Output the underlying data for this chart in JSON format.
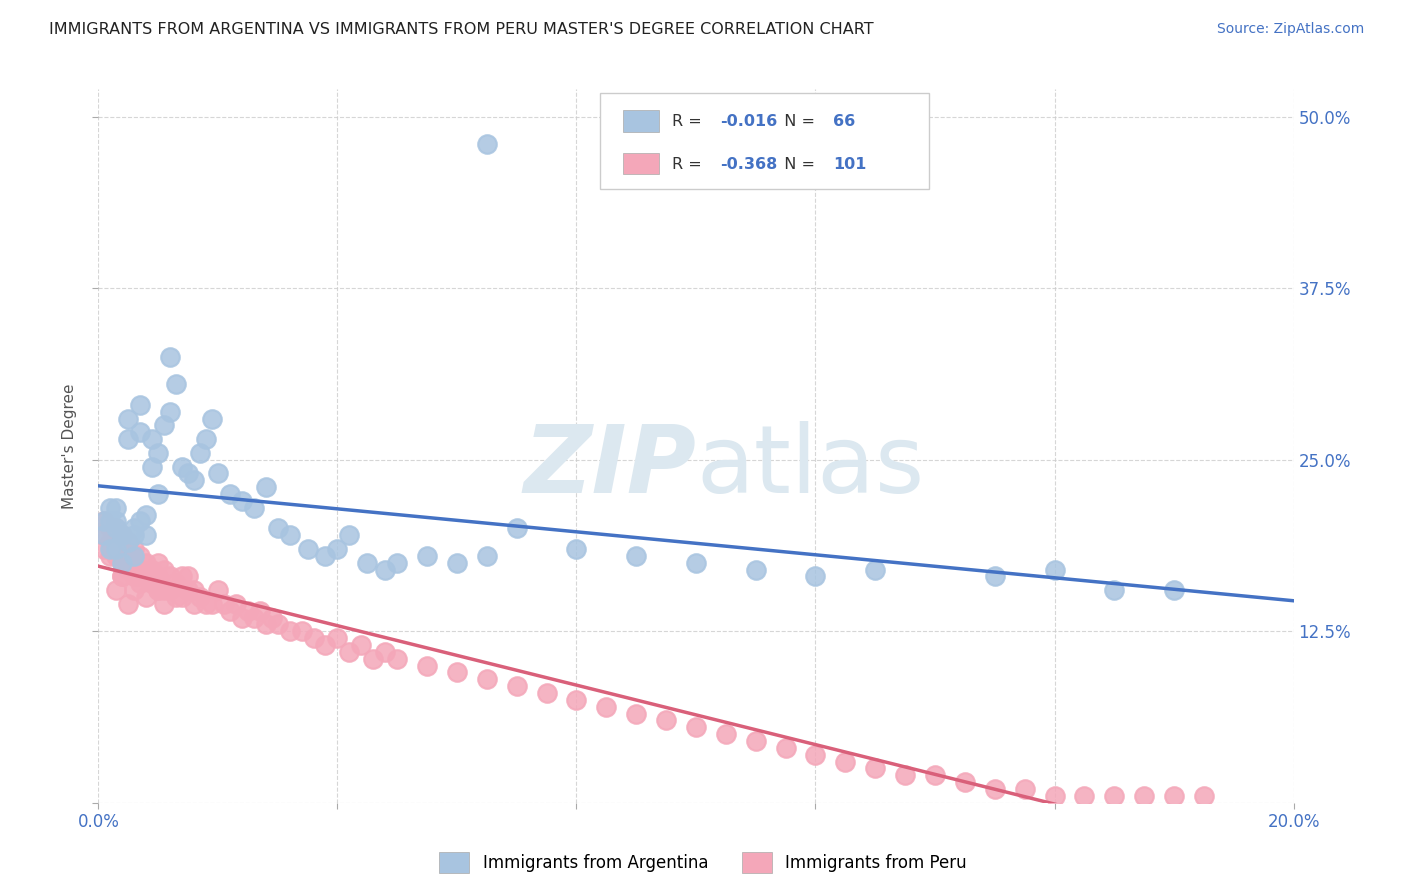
{
  "title": "IMMIGRANTS FROM ARGENTINA VS IMMIGRANTS FROM PERU MASTER'S DEGREE CORRELATION CHART",
  "source": "Source: ZipAtlas.com",
  "ylabel": "Master's Degree",
  "legend_label1": "Immigrants from Argentina",
  "legend_label2": "Immigrants from Peru",
  "R1": -0.016,
  "N1": 66,
  "R2": -0.368,
  "N2": 101,
  "color1": "#a8c4e0",
  "color2": "#f4a7b9",
  "line_color1": "#4472c4",
  "line_color2": "#d9607a",
  "watermark_color": "#dce8f0",
  "background_color": "#ffffff",
  "title_color": "#222222",
  "source_color": "#4472c4",
  "axis_color": "#4472c4",
  "grid_color": "#cccccc",
  "xlim": [
    0.0,
    0.2
  ],
  "ylim": [
    0.0,
    0.52
  ],
  "yticks": [
    0.0,
    0.125,
    0.25,
    0.375,
    0.5
  ],
  "ytick_labels": [
    "",
    "12.5%",
    "25.0%",
    "37.5%",
    "50.0%"
  ],
  "argentina_x": [
    0.001,
    0.001,
    0.002,
    0.002,
    0.003,
    0.003,
    0.003,
    0.004,
    0.004,
    0.005,
    0.005,
    0.006,
    0.006,
    0.007,
    0.007,
    0.008,
    0.008,
    0.009,
    0.009,
    0.01,
    0.01,
    0.011,
    0.012,
    0.012,
    0.013,
    0.014,
    0.015,
    0.016,
    0.017,
    0.018,
    0.019,
    0.02,
    0.022,
    0.024,
    0.026,
    0.028,
    0.03,
    0.032,
    0.035,
    0.038,
    0.04,
    0.042,
    0.045,
    0.048,
    0.05,
    0.055,
    0.06,
    0.065,
    0.07,
    0.08,
    0.09,
    0.1,
    0.11,
    0.12,
    0.13,
    0.15,
    0.16,
    0.17,
    0.18,
    0.002,
    0.003,
    0.004,
    0.005,
    0.006,
    0.007,
    0.065
  ],
  "argentina_y": [
    0.205,
    0.195,
    0.215,
    0.185,
    0.205,
    0.185,
    0.215,
    0.195,
    0.175,
    0.28,
    0.265,
    0.195,
    0.18,
    0.29,
    0.27,
    0.195,
    0.21,
    0.245,
    0.265,
    0.255,
    0.225,
    0.275,
    0.285,
    0.325,
    0.305,
    0.245,
    0.24,
    0.235,
    0.255,
    0.265,
    0.28,
    0.24,
    0.225,
    0.22,
    0.215,
    0.23,
    0.2,
    0.195,
    0.185,
    0.18,
    0.185,
    0.195,
    0.175,
    0.17,
    0.175,
    0.18,
    0.175,
    0.18,
    0.2,
    0.185,
    0.18,
    0.175,
    0.17,
    0.165,
    0.17,
    0.165,
    0.17,
    0.155,
    0.155,
    0.205,
    0.2,
    0.195,
    0.19,
    0.2,
    0.205,
    0.48
  ],
  "peru_x": [
    0.001,
    0.001,
    0.001,
    0.002,
    0.002,
    0.002,
    0.003,
    0.003,
    0.003,
    0.004,
    0.004,
    0.004,
    0.004,
    0.005,
    0.005,
    0.005,
    0.006,
    0.006,
    0.006,
    0.007,
    0.007,
    0.007,
    0.008,
    0.008,
    0.009,
    0.009,
    0.01,
    0.01,
    0.01,
    0.011,
    0.011,
    0.012,
    0.012,
    0.013,
    0.013,
    0.014,
    0.014,
    0.015,
    0.015,
    0.016,
    0.016,
    0.017,
    0.018,
    0.019,
    0.02,
    0.021,
    0.022,
    0.023,
    0.024,
    0.025,
    0.026,
    0.027,
    0.028,
    0.029,
    0.03,
    0.032,
    0.034,
    0.036,
    0.038,
    0.04,
    0.042,
    0.044,
    0.046,
    0.048,
    0.05,
    0.055,
    0.06,
    0.065,
    0.07,
    0.075,
    0.08,
    0.085,
    0.09,
    0.095,
    0.1,
    0.105,
    0.11,
    0.115,
    0.12,
    0.125,
    0.13,
    0.135,
    0.14,
    0.145,
    0.15,
    0.155,
    0.16,
    0.165,
    0.17,
    0.175,
    0.18,
    0.185,
    0.003,
    0.004,
    0.005,
    0.006,
    0.007,
    0.008,
    0.009,
    0.01,
    0.011
  ],
  "peru_y": [
    0.205,
    0.195,
    0.185,
    0.2,
    0.19,
    0.18,
    0.2,
    0.19,
    0.18,
    0.195,
    0.185,
    0.175,
    0.165,
    0.19,
    0.18,
    0.17,
    0.185,
    0.175,
    0.165,
    0.18,
    0.17,
    0.16,
    0.175,
    0.165,
    0.17,
    0.16,
    0.165,
    0.175,
    0.155,
    0.17,
    0.155,
    0.165,
    0.155,
    0.16,
    0.15,
    0.165,
    0.15,
    0.155,
    0.165,
    0.145,
    0.155,
    0.15,
    0.145,
    0.145,
    0.155,
    0.145,
    0.14,
    0.145,
    0.135,
    0.14,
    0.135,
    0.14,
    0.13,
    0.135,
    0.13,
    0.125,
    0.125,
    0.12,
    0.115,
    0.12,
    0.11,
    0.115,
    0.105,
    0.11,
    0.105,
    0.1,
    0.095,
    0.09,
    0.085,
    0.08,
    0.075,
    0.07,
    0.065,
    0.06,
    0.055,
    0.05,
    0.045,
    0.04,
    0.035,
    0.03,
    0.025,
    0.02,
    0.02,
    0.015,
    0.01,
    0.01,
    0.005,
    0.005,
    0.005,
    0.005,
    0.005,
    0.005,
    0.155,
    0.165,
    0.145,
    0.155,
    0.165,
    0.15,
    0.16,
    0.155,
    0.145
  ]
}
